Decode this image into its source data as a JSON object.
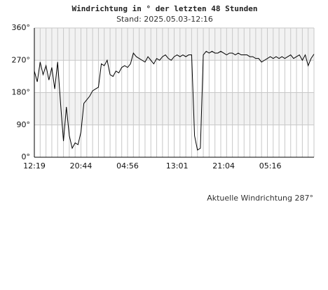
{
  "chart_data": {
    "type": "line",
    "title": "Windrichtung in ° der letzten 48 Stunden",
    "subtitle": "Stand: 2025.05.03-12:16",
    "annotation": "Aktuelle Windrichtung 287°",
    "categories": [
      "12:19",
      null,
      null,
      null,
      null,
      null,
      null,
      null,
      null,
      null,
      null,
      null,
      null,
      null,
      null,
      null,
      "20:44",
      null,
      null,
      null,
      null,
      null,
      null,
      null,
      null,
      null,
      null,
      null,
      null,
      null,
      null,
      null,
      "04:56",
      null,
      null,
      null,
      null,
      null,
      null,
      null,
      null,
      null,
      null,
      null,
      null,
      null,
      null,
      null,
      null,
      "13:01",
      null,
      null,
      null,
      null,
      null,
      null,
      null,
      null,
      null,
      null,
      null,
      null,
      null,
      null,
      null,
      "21:04",
      null,
      null,
      null,
      null,
      null,
      null,
      null,
      null,
      null,
      null,
      null,
      null,
      null,
      null,
      null,
      "05:16",
      null,
      null,
      null,
      null,
      null,
      null,
      null,
      null,
      null,
      null,
      null,
      null,
      null,
      null,
      null
    ],
    "series": [
      {
        "color": "#000000",
        "values": [
          240,
          210,
          265,
          230,
          255,
          215,
          250,
          190,
          265,
          150,
          45,
          140,
          60,
          25,
          40,
          35,
          70,
          150,
          160,
          170,
          185,
          190,
          195,
          260,
          255,
          270,
          230,
          225,
          240,
          235,
          250,
          255,
          250,
          260,
          290,
          280,
          275,
          270,
          265,
          280,
          270,
          260,
          275,
          270,
          280,
          285,
          275,
          270,
          280,
          285,
          280,
          285,
          280,
          285,
          285,
          60,
          20,
          25,
          285,
          295,
          290,
          295,
          290,
          290,
          295,
          290,
          285,
          290,
          290,
          285,
          290,
          285,
          285,
          285,
          280,
          280,
          275,
          275,
          265,
          270,
          275,
          280,
          275,
          280,
          275,
          280,
          275,
          280,
          285,
          275,
          280,
          285,
          270,
          285,
          255,
          275,
          287
        ]
      }
    ],
    "ylim": [
      0,
      360
    ],
    "yticks": [
      {
        "value": 0,
        "label": "0°"
      },
      {
        "value": 90,
        "label": "90°"
      },
      {
        "value": 180,
        "label": "180°"
      },
      {
        "value": 270,
        "label": "270°"
      },
      {
        "value": 360,
        "label": "360°"
      }
    ],
    "grid": true
  }
}
